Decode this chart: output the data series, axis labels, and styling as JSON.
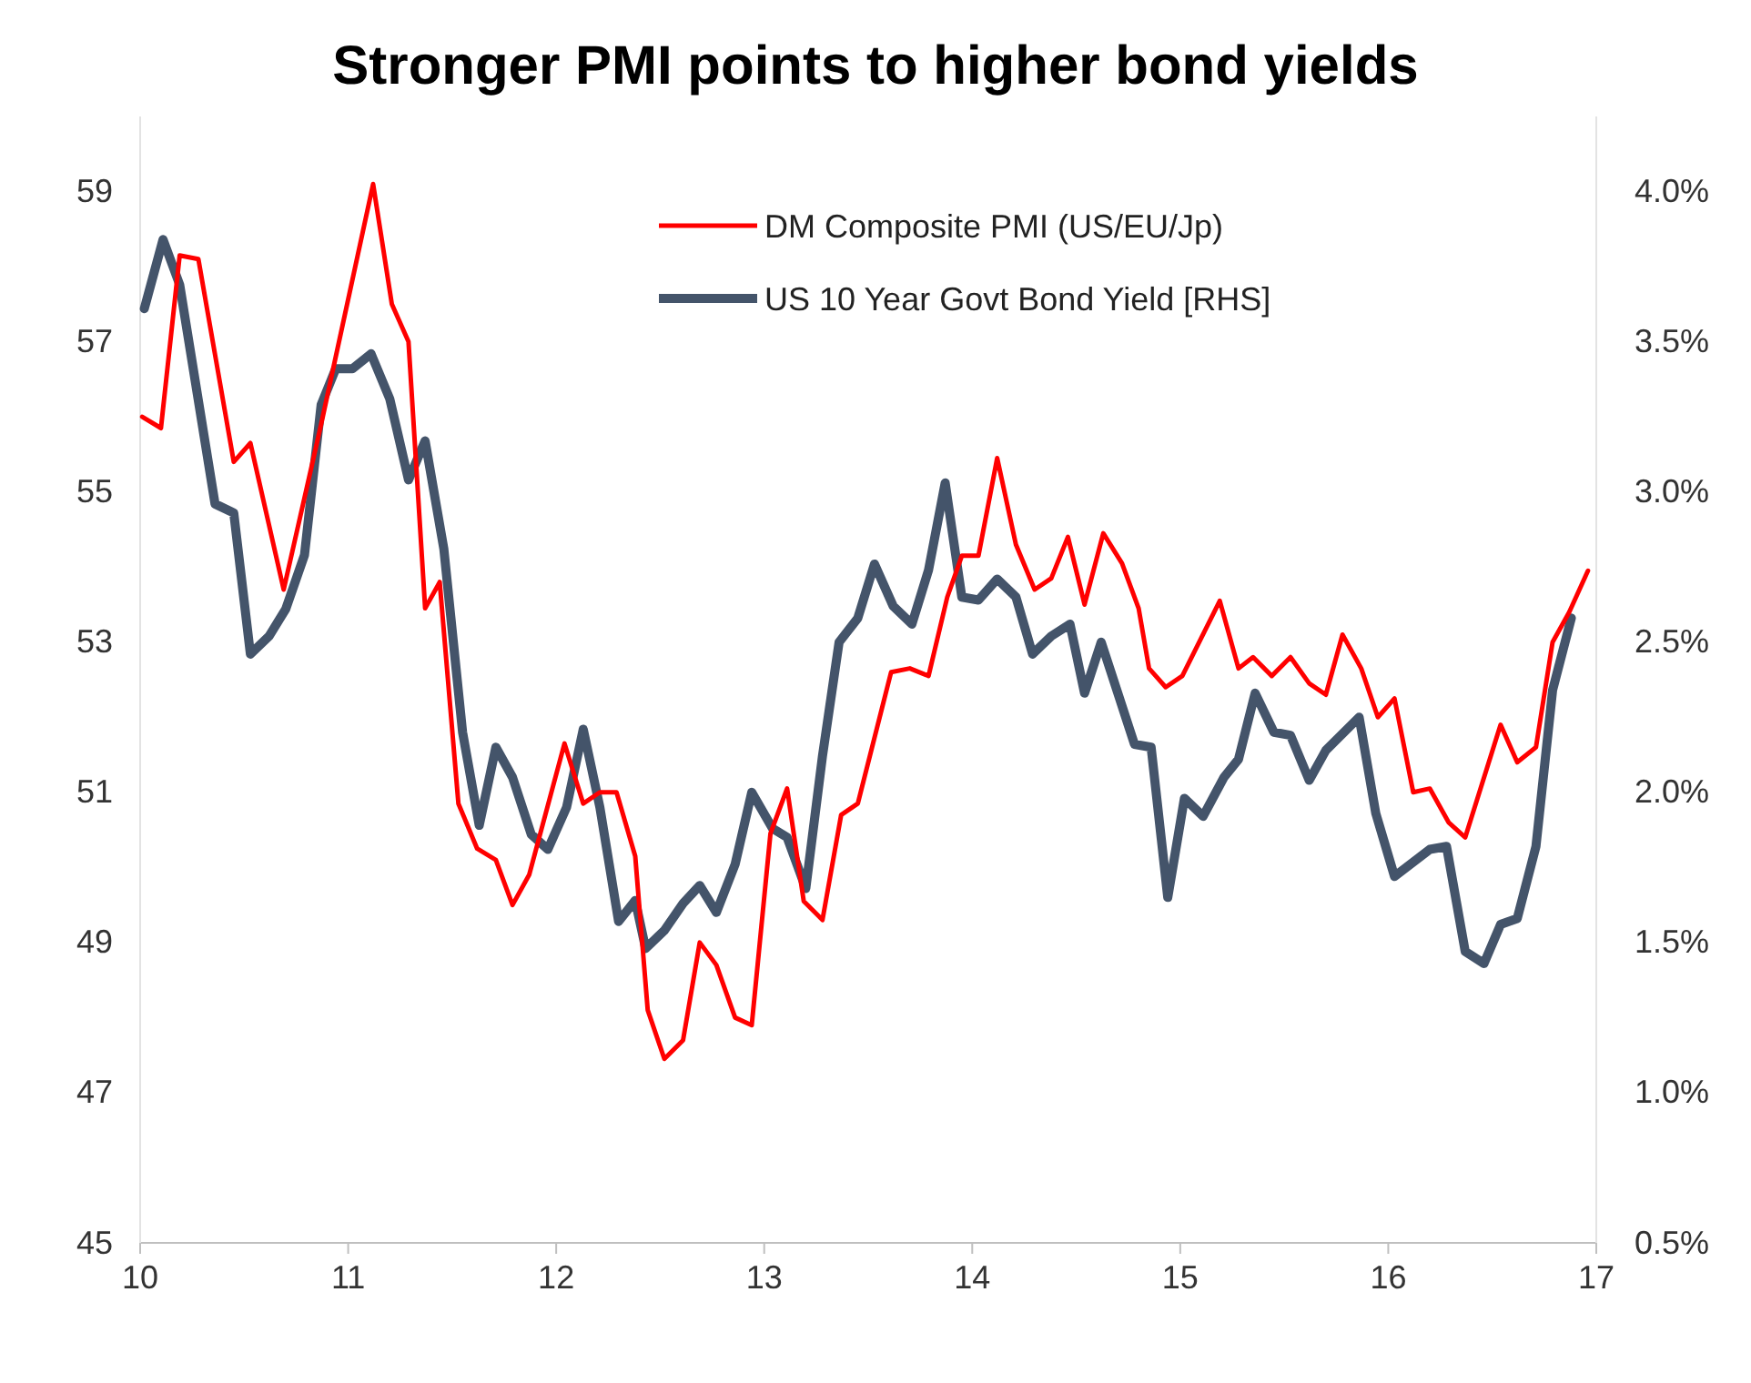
{
  "chart_data": {
    "type": "line",
    "title": "Stronger PMI points to higher bond yields",
    "xlim": [
      10,
      17
    ],
    "xticks": [
      10,
      11,
      12,
      13,
      14,
      15,
      16,
      17
    ],
    "ylim": [
      45,
      60
    ],
    "yticks": [
      45,
      47,
      49,
      51,
      53,
      55,
      57,
      59
    ],
    "y2lim": [
      0.5,
      4.25
    ],
    "y2ticks": [
      {
        "value": 0.5,
        "label": "0.5%"
      },
      {
        "value": 1.0,
        "label": "1.0%"
      },
      {
        "value": 1.5,
        "label": "1.5%"
      },
      {
        "value": 2.0,
        "label": "2.0%"
      },
      {
        "value": 2.5,
        "label": "2.5%"
      },
      {
        "value": 3.0,
        "label": "3.0%"
      },
      {
        "value": 3.5,
        "label": "3.5%"
      },
      {
        "value": 4.0,
        "label": "4.0%"
      }
    ],
    "grid": false,
    "legend": "top right",
    "line_style": "solid",
    "series": [
      {
        "name": "DM Composite PMI (US/EU/Jp)",
        "color": "#ff0000",
        "x": [
          10.01,
          10.1,
          10.19,
          10.28,
          10.45,
          10.53,
          10.69,
          10.87,
          11.12,
          11.21,
          11.29,
          11.37,
          11.44,
          11.53,
          11.62,
          11.71,
          11.79,
          11.87,
          12.04,
          12.13,
          12.21,
          12.29,
          12.38,
          12.44,
          12.52,
          12.61,
          12.69,
          12.77,
          12.86,
          12.94,
          13.03,
          13.11,
          13.19,
          13.28,
          13.37,
          13.45,
          13.61,
          13.7,
          13.79,
          13.88,
          13.95,
          14.03,
          14.12,
          14.21,
          14.3,
          14.38,
          14.46,
          14.54,
          14.63,
          14.72,
          14.8,
          14.85,
          14.93,
          15.01,
          15.19,
          15.28,
          15.35,
          15.44,
          15.53,
          15.62,
          15.7,
          15.78,
          15.87,
          15.95,
          16.03,
          16.12,
          16.2,
          16.29,
          16.37,
          16.54,
          16.62,
          16.71,
          16.79,
          16.87,
          16.96
        ],
        "values": [
          56.0,
          55.85,
          58.15,
          58.1,
          55.4,
          55.65,
          53.7,
          55.9,
          59.1,
          57.5,
          57.0,
          53.45,
          53.8,
          50.85,
          50.25,
          50.1,
          49.5,
          49.9,
          51.65,
          50.85,
          51.0,
          51.0,
          50.15,
          48.1,
          47.45,
          47.7,
          49.0,
          48.7,
          48.0,
          47.9,
          50.45,
          51.05,
          49.55,
          49.3,
          50.7,
          50.85,
          52.6,
          52.65,
          52.55,
          53.6,
          54.15,
          54.15,
          55.45,
          54.3,
          53.7,
          53.85,
          54.4,
          53.5,
          54.45,
          54.05,
          53.45,
          52.65,
          52.4,
          52.55,
          53.55,
          52.65,
          52.8,
          52.55,
          52.8,
          52.45,
          52.3,
          53.1,
          52.65,
          52.0,
          52.25,
          51.0,
          51.05,
          50.6,
          50.4,
          51.9,
          51.4,
          51.6,
          53.0,
          53.4,
          53.95
        ]
      },
      {
        "name": "US 10 Year Govt Bond Yield [RHS]",
        "color": "#44546a",
        "axis": "y2",
        "x": [
          10.02,
          10.11,
          10.19,
          10.36,
          10.45,
          10.53,
          10.62,
          10.7,
          10.79,
          10.87,
          10.94,
          11.02,
          11.11,
          11.2,
          11.29,
          11.37,
          11.46,
          11.55,
          11.63,
          11.71,
          11.79,
          11.88,
          11.96,
          12.05,
          12.13,
          12.21,
          12.3,
          12.38,
          12.43,
          12.52,
          12.61,
          12.69,
          12.77,
          12.86,
          12.94,
          13.04,
          13.11,
          13.2,
          13.28,
          13.36,
          13.45,
          13.53,
          13.62,
          13.71,
          13.79,
          13.87,
          13.95,
          14.03,
          14.12,
          14.21,
          14.29,
          14.38,
          14.47,
          14.54,
          14.62,
          14.78,
          14.86,
          14.94,
          15.02,
          15.11,
          15.21,
          15.28,
          15.36,
          15.45,
          15.53,
          15.62,
          15.7,
          15.86,
          15.94,
          16.03,
          16.2,
          16.28,
          16.37,
          16.46,
          16.54,
          16.62,
          16.71,
          16.79,
          16.88
        ],
        "values": [
          3.61,
          3.84,
          3.69,
          2.96,
          2.93,
          2.46,
          2.52,
          2.61,
          2.79,
          3.29,
          3.41,
          3.41,
          3.46,
          3.31,
          3.04,
          3.17,
          2.81,
          2.2,
          1.89,
          2.15,
          2.05,
          1.86,
          1.81,
          1.95,
          2.21,
          1.95,
          1.57,
          1.64,
          1.48,
          1.54,
          1.63,
          1.69,
          1.6,
          1.76,
          2.0,
          1.88,
          1.85,
          1.68,
          2.12,
          2.5,
          2.58,
          2.76,
          2.62,
          2.56,
          2.74,
          3.03,
          2.65,
          2.64,
          2.71,
          2.65,
          2.46,
          2.52,
          2.56,
          2.33,
          2.5,
          2.16,
          2.15,
          1.65,
          1.98,
          1.92,
          2.05,
          2.11,
          2.33,
          2.2,
          2.19,
          2.04,
          2.14,
          2.25,
          1.93,
          1.72,
          1.81,
          1.82,
          1.47,
          1.43,
          1.56,
          1.58,
          1.82,
          2.34,
          2.58
        ]
      }
    ]
  }
}
